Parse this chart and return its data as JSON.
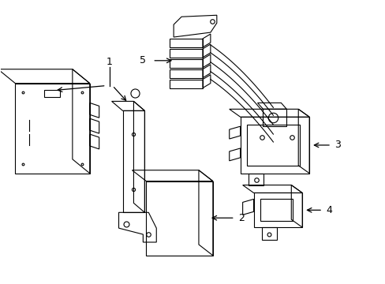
{
  "background_color": "#ffffff",
  "line_color": "#000000",
  "label_color": "#000000",
  "lw": 0.8
}
